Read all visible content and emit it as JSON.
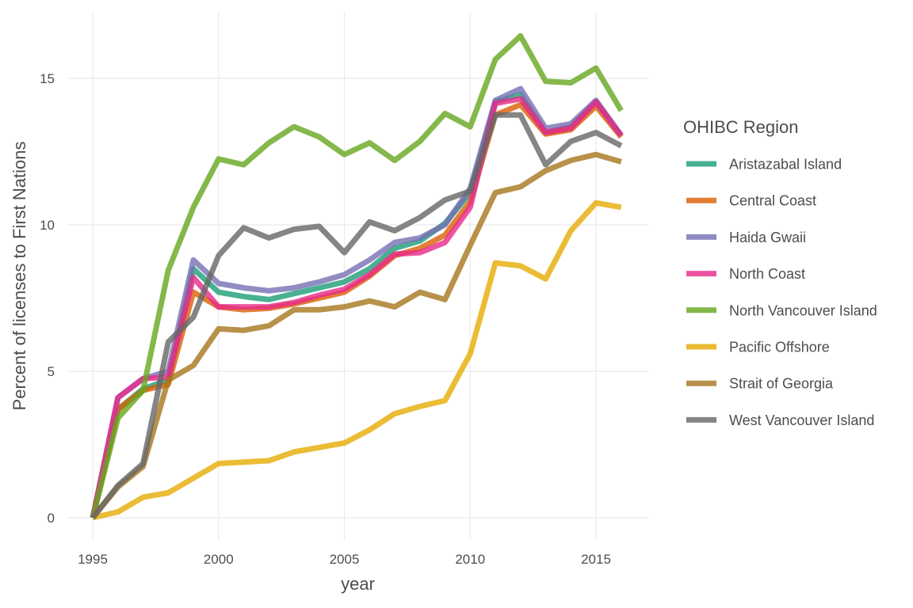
{
  "chart_data": {
    "type": "line",
    "title": "",
    "xlabel": "year",
    "ylabel": "Percent of licenses to First Nations",
    "xlim": [
      1995,
      2016
    ],
    "ylim": [
      0,
      16.5
    ],
    "x_ticks": [
      1995,
      2000,
      2005,
      2010,
      2015
    ],
    "y_ticks": [
      0,
      5,
      10,
      15
    ],
    "grid": true,
    "legend": {
      "title": "OHIBC Region",
      "position": "right"
    },
    "x": [
      1995,
      1996,
      1997,
      1998,
      1999,
      2000,
      2001,
      2002,
      2003,
      2004,
      2005,
      2006,
      2007,
      2008,
      2009,
      2010,
      2011,
      2012,
      2013,
      2014,
      2015,
      2016
    ],
    "series": [
      {
        "name": "Aristazabal Island",
        "color": "#1b9e77",
        "values": [
          0,
          3.7,
          4.4,
          4.7,
          8.5,
          7.7,
          7.55,
          7.45,
          7.65,
          7.85,
          8.05,
          8.5,
          9.2,
          9.45,
          10.05,
          11.1,
          14.2,
          14.45,
          13.15,
          13.35,
          14.2,
          13.05
        ]
      },
      {
        "name": "Central Coast",
        "color": "#d95f02",
        "values": [
          0,
          3.7,
          4.35,
          4.55,
          7.7,
          7.2,
          7.1,
          7.15,
          7.3,
          7.5,
          7.7,
          8.25,
          8.95,
          9.2,
          9.65,
          10.8,
          13.75,
          14.1,
          13.1,
          13.25,
          14.05,
          13.0
        ]
      },
      {
        "name": "Haida Gwaii",
        "color": "#7570b3",
        "values": [
          0,
          4.1,
          4.75,
          5.0,
          8.8,
          8.0,
          7.85,
          7.75,
          7.85,
          8.05,
          8.3,
          8.8,
          9.4,
          9.55,
          10.0,
          11.25,
          14.25,
          14.65,
          13.3,
          13.45,
          14.25,
          13.05
        ]
      },
      {
        "name": "North Coast",
        "color": "#e7298a",
        "values": [
          0,
          4.1,
          4.75,
          4.8,
          8.2,
          7.2,
          7.2,
          7.2,
          7.35,
          7.6,
          7.8,
          8.3,
          9.0,
          9.05,
          9.4,
          10.6,
          14.15,
          14.3,
          13.15,
          13.3,
          14.2,
          13.05
        ]
      },
      {
        "name": "North Vancouver Island",
        "color": "#66a61e",
        "values": [
          0,
          3.4,
          4.35,
          8.45,
          10.6,
          12.25,
          12.05,
          12.8,
          13.35,
          13.0,
          12.4,
          12.8,
          12.2,
          12.85,
          13.8,
          13.35,
          15.65,
          16.45,
          14.9,
          14.85,
          15.35,
          13.9
        ]
      },
      {
        "name": "Pacific Offshore",
        "color": "#e6ab02",
        "values": [
          0,
          0.2,
          0.7,
          0.85,
          1.35,
          1.85,
          1.9,
          1.95,
          2.25,
          2.4,
          2.55,
          3.0,
          3.55,
          3.8,
          4.0,
          5.6,
          8.7,
          8.6,
          8.15,
          9.8,
          10.75,
          10.6
        ]
      },
      {
        "name": "Strait of Georgia",
        "color": "#a6761d",
        "values": [
          0,
          1.05,
          1.75,
          4.7,
          5.2,
          6.45,
          6.4,
          6.55,
          7.1,
          7.1,
          7.2,
          7.4,
          7.2,
          7.7,
          7.45,
          9.3,
          11.1,
          11.3,
          11.85,
          12.2,
          12.4,
          12.15
        ]
      },
      {
        "name": "West Vancouver Island",
        "color": "#666666",
        "values": [
          0,
          1.1,
          1.85,
          6.0,
          6.85,
          8.95,
          9.9,
          9.55,
          9.85,
          9.95,
          9.05,
          10.1,
          9.8,
          10.25,
          10.85,
          11.15,
          13.75,
          13.75,
          12.05,
          12.85,
          13.15,
          12.7
        ]
      }
    ]
  }
}
